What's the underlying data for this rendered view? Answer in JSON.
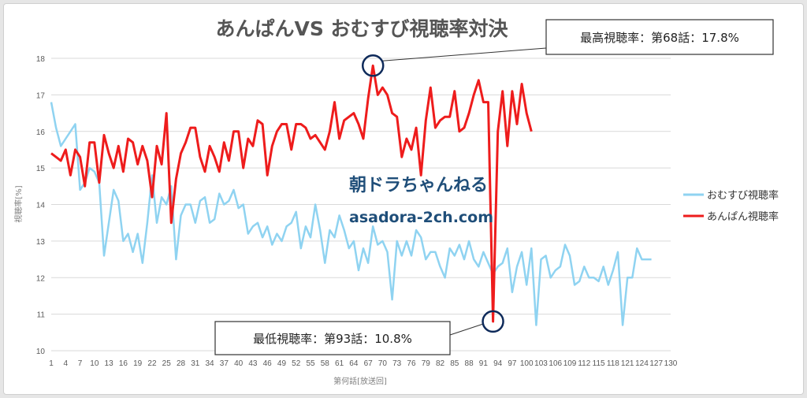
{
  "chart_data": {
    "type": "line",
    "title": "あんぱんVS おむすび視聴率対決",
    "xlabel": "第何話[放送回]",
    "ylabel": "視聴率[%]",
    "ylim": [
      10,
      18
    ],
    "yticks": [
      10,
      11,
      12,
      13,
      14,
      15,
      16,
      17,
      18
    ],
    "xlim": [
      1,
      130
    ],
    "xticks": [
      1,
      4,
      7,
      10,
      13,
      16,
      19,
      22,
      25,
      28,
      31,
      34,
      37,
      40,
      43,
      46,
      49,
      52,
      55,
      58,
      61,
      64,
      67,
      70,
      73,
      76,
      79,
      82,
      85,
      88,
      91,
      94,
      97,
      100,
      103,
      106,
      109,
      112,
      115,
      118,
      121,
      124,
      127,
      130
    ],
    "grid": "horizontal",
    "legend_position": "right",
    "series": [
      {
        "name": "おむすび視聴率",
        "color": "#8fd3f1",
        "values": [
          16.8,
          16.1,
          15.6,
          15.8,
          16.0,
          16.2,
          14.4,
          14.6,
          15.0,
          14.9,
          14.6,
          12.6,
          13.5,
          14.4,
          14.1,
          13.0,
          13.2,
          12.7,
          13.2,
          12.4,
          13.5,
          14.8,
          13.5,
          14.2,
          14.0,
          14.5,
          12.5,
          13.7,
          14.0,
          14.0,
          13.5,
          14.1,
          14.2,
          13.5,
          13.6,
          14.3,
          14.0,
          14.1,
          14.4,
          13.9,
          14.0,
          13.2,
          13.4,
          13.5,
          13.1,
          13.4,
          12.9,
          13.2,
          13.0,
          13.4,
          13.5,
          13.8,
          12.8,
          13.4,
          13.1,
          14.0,
          13.3,
          12.4,
          13.3,
          13.1,
          13.7,
          13.3,
          12.8,
          13.0,
          12.2,
          12.8,
          12.4,
          13.4,
          12.9,
          13.0,
          12.7,
          11.4,
          13.0,
          12.6,
          13.0,
          12.6,
          13.3,
          13.1,
          12.5,
          12.7,
          12.7,
          12.3,
          12.0,
          12.8,
          12.6,
          12.9,
          12.5,
          13.0,
          12.5,
          12.3,
          12.7,
          12.4,
          12.1,
          12.3,
          12.4,
          12.8,
          11.6,
          12.3,
          12.7,
          11.8,
          12.8,
          10.7,
          12.5,
          12.6,
          12.0,
          12.2,
          12.3,
          12.9,
          12.6,
          11.8,
          11.9,
          12.3,
          12.0,
          12.0,
          11.9,
          12.3,
          11.8,
          12.2,
          12.7,
          10.7,
          12.0,
          12.0,
          12.8,
          12.5,
          12.5,
          12.5
        ]
      },
      {
        "name": "あんぱん視聴率",
        "color": "#ee1c1c",
        "values": [
          15.4,
          15.3,
          15.2,
          15.5,
          14.8,
          15.5,
          15.3,
          14.5,
          15.7,
          15.7,
          14.6,
          15.9,
          15.4,
          15.0,
          15.6,
          14.9,
          15.8,
          15.7,
          15.1,
          15.6,
          15.2,
          14.2,
          15.6,
          15.1,
          16.5,
          13.5,
          14.7,
          15.4,
          15.7,
          16.1,
          16.1,
          15.3,
          14.9,
          15.6,
          15.3,
          14.9,
          15.7,
          15.2,
          16.0,
          16.0,
          15.0,
          15.8,
          15.6,
          16.3,
          16.2,
          14.8,
          15.6,
          16.0,
          16.2,
          16.2,
          15.5,
          16.2,
          16.2,
          16.1,
          15.8,
          15.9,
          15.7,
          15.5,
          16.0,
          16.8,
          15.8,
          16.3,
          16.4,
          16.5,
          16.2,
          15.8,
          16.9,
          17.8,
          17.0,
          17.2,
          17.0,
          16.5,
          16.4,
          15.3,
          15.8,
          15.5,
          16.1,
          14.8,
          16.3,
          17.2,
          16.1,
          16.3,
          16.4,
          16.4,
          17.1,
          16.0,
          16.1,
          16.5,
          17.0,
          17.4,
          16.8,
          16.8,
          10.8,
          16.0,
          17.1,
          15.6,
          17.1,
          16.2,
          17.3,
          16.5,
          16.0
        ]
      }
    ],
    "annotations": [
      {
        "text": "最高視聴率：第68話：17.8%",
        "episode": 68,
        "value": 17.8
      },
      {
        "text": "最低視聴率：第93話：10.8%",
        "episode": 93,
        "value": 10.8
      }
    ]
  },
  "watermark": {
    "line1": "朝ドラちゃんねる",
    "line2": "asadora-2ch.com"
  },
  "colors": {
    "annotation_circle": "#0e2a5a",
    "annotation_box_border": "#333333"
  }
}
